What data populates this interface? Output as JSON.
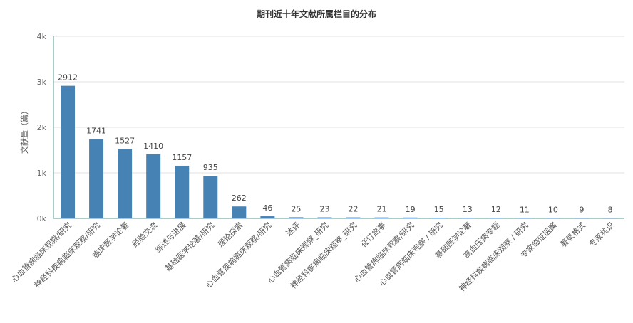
{
  "chart_data": {
    "type": "bar",
    "title": "期刊近十年文献所属栏目的分布",
    "xlabel": "",
    "ylabel": "文献量（篇）",
    "ylim": [
      0,
      4000
    ],
    "yticks": [
      "0k",
      "1k",
      "2k",
      "3k",
      "4k"
    ],
    "grid": true,
    "categories": [
      "心血管病临床观察/研究",
      "神经科疾病临床观察/研究",
      "临床医学论著",
      "经验交流",
      "综述与进展",
      "基础医学论著/研究",
      "理论探索",
      "心血管疾病临床观察/研究",
      "述评",
      "心血管病临床观察_研究",
      "神经科疾病临床观察_研究",
      "征订启事",
      "心血管病临床观察/研究",
      "心血管病临床观察 / 研究",
      "基础医学论著",
      "高血压病专题",
      "神经科疾病临床观察 / 研究",
      "专家临证医案",
      "著录格式",
      "专家共识"
    ],
    "values": [
      2912,
      1741,
      1527,
      1410,
      1157,
      935,
      262,
      46,
      25,
      23,
      22,
      21,
      19,
      15,
      13,
      12,
      11,
      10,
      9,
      8
    ],
    "colors": {
      "bar": "#4682b4",
      "grid": "#e0e0e0",
      "axis": "#4d9e8e"
    }
  }
}
